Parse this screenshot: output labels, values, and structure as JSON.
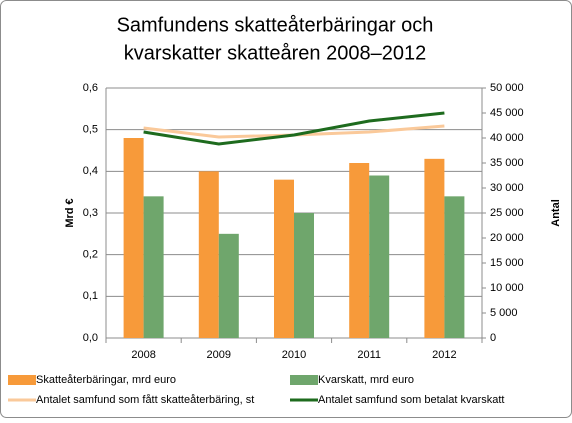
{
  "chart_data": {
    "type": "bar",
    "title": [
      "Samfundens skatteåterbäringar och",
      "kvarskatter skatteåren 2008–2012"
    ],
    "y_label": "Mrd €",
    "y2_label": "Antal",
    "categories": [
      "2008",
      "2009",
      "2010",
      "2011",
      "2012"
    ],
    "series": [
      {
        "name": "Skatteåterbäringar, mrd euro",
        "type": "bar",
        "color": "#f79a3a",
        "values": [
          0.48,
          0.4,
          0.38,
          0.42,
          0.43
        ]
      },
      {
        "name": "Kvarskatt, mrd  euro",
        "type": "bar",
        "color": "#6fa66c",
        "values": [
          0.34,
          0.25,
          0.3,
          0.39,
          0.34
        ]
      },
      {
        "name": "Antalet samfund som fått skatteåterbäring, st",
        "type": "line",
        "axis": "y2",
        "color": "#fac99a",
        "values": [
          42000,
          40200,
          40600,
          41200,
          42400
        ]
      },
      {
        "name": "Antalet samfund som betalat kvarskatt",
        "type": "line",
        "axis": "y2",
        "color": "#1e6b1e",
        "values": [
          41200,
          38800,
          40600,
          43400,
          45000
        ]
      }
    ],
    "ylim": [
      0,
      0.6
    ],
    "yticks": [
      {
        "value": 0,
        "label": "0,0"
      },
      {
        "value": 0.1,
        "label": "0,1"
      },
      {
        "value": 0.2,
        "label": "0,2"
      },
      {
        "value": 0.3,
        "label": "0,3"
      },
      {
        "value": 0.4,
        "label": "0,4"
      },
      {
        "value": 0.5,
        "label": "0,5"
      },
      {
        "value": 0.6,
        "label": "0,6"
      }
    ],
    "y2lim": [
      0,
      50000
    ],
    "y2ticks": [
      0,
      {
        "value": 5000,
        "label": "5 000"
      },
      {
        "value": 10000,
        "label": "10 000"
      },
      {
        "value": 15000,
        "label": "15 000"
      },
      {
        "value": 20000,
        "label": "20 000"
      },
      {
        "value": 25000,
        "label": "25 000"
      },
      {
        "value": 30000,
        "label": "30 000"
      },
      {
        "value": 35000,
        "label": "35 000"
      },
      {
        "value": 40000,
        "label": "40 000"
      },
      {
        "value": 45000,
        "label": "45 000"
      },
      {
        "value": 50000,
        "label": "50 000"
      }
    ],
    "grid": true
  }
}
